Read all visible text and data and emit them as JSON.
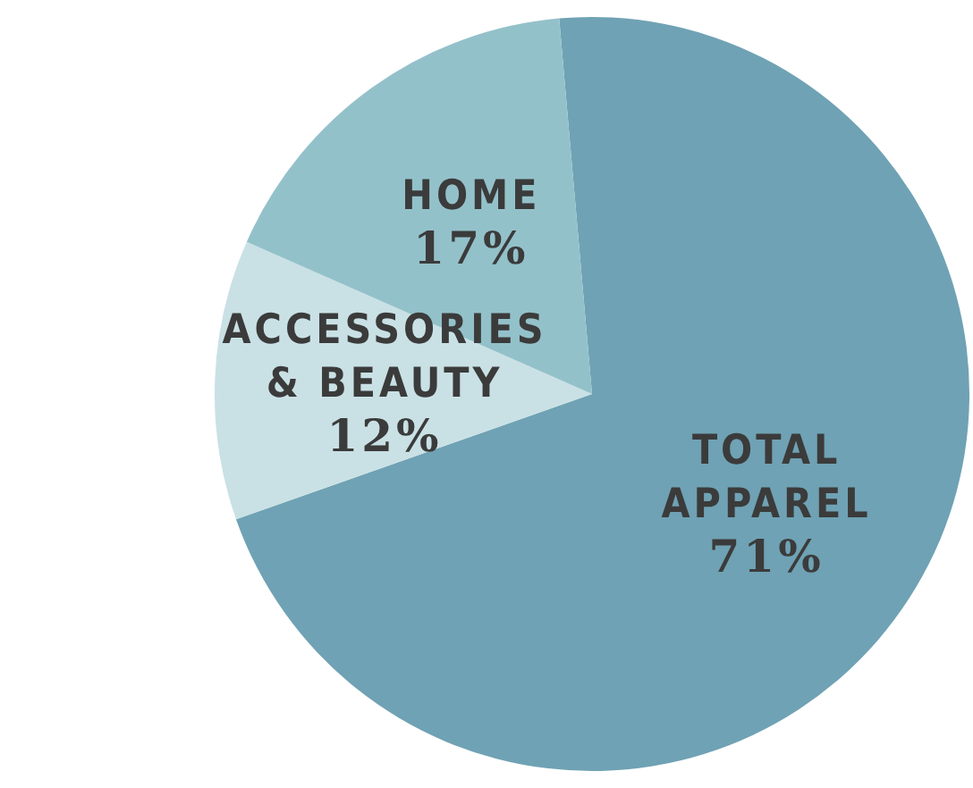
{
  "chart_data": {
    "type": "pie",
    "categories": [
      "TOTAL APPAREL",
      "ACCESSORIES & BEAUTY",
      "HOME"
    ],
    "values": [
      71,
      12,
      17
    ],
    "colors": [
      "#6fa2b4",
      "#c9e1e5",
      "#93c1ca"
    ],
    "value_labels": [
      "71%",
      "12%",
      "17%"
    ]
  }
}
